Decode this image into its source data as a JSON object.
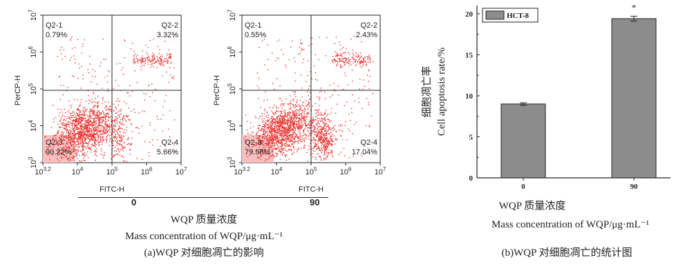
{
  "panel_a": {
    "plots": [
      {
        "group_label": "0",
        "quadrants": {
          "q1": {
            "name": "Q2-1",
            "pct": "0.79%"
          },
          "q2": {
            "name": "Q2-2",
            "pct": "3.32%"
          },
          "q3": {
            "name": "Q2-3",
            "pct": "90.22%"
          },
          "q4": {
            "name": "Q2-4",
            "pct": "5.66%"
          }
        }
      },
      {
        "group_label": "90",
        "quadrants": {
          "q1": {
            "name": "Q2-1",
            "pct": "0.55%"
          },
          "q2": {
            "name": "Q2-2",
            "pct": "2.43%"
          },
          "q3": {
            "name": "Q2-3",
            "pct": "79.98%"
          },
          "q4": {
            "name": "Q2-4",
            "pct": "17.04%"
          }
        }
      }
    ],
    "y_axis_label": "PerCP-H",
    "x_axis_label": "FITC-H",
    "x_ticks": [
      "10^3.2",
      "10^4",
      "10^5",
      "10^6",
      "10^7"
    ],
    "y_ticks": [
      "10^3",
      "10^4",
      "10^5",
      "10^6",
      "10^7"
    ],
    "caption_zh": "WQP 质量浓度",
    "caption_en": "Mass concentration of WQP/μg·mL⁻¹",
    "subcaption": "(a)WQP 对细胞凋亡的影响"
  },
  "panel_b": {
    "caption_zh": "WQP 质量浓度",
    "caption_en": "Mass concentration of WQP/μg·mL⁻¹",
    "subcaption": "(b)WQP 对细胞凋亡的统计图"
  },
  "chart_data": {
    "type": "bar",
    "categories": [
      "0",
      "90"
    ],
    "series": [
      {
        "name": "HCT-8",
        "values": [
          9.0,
          19.4
        ],
        "errors": [
          0.15,
          0.3
        ],
        "color": "#8c8c8c"
      }
    ],
    "ylabel_zh": "细胞凋亡率",
    "ylabel_en": "Cell apoptosis rate/%",
    "ylim": [
      0,
      21
    ],
    "yticks": [
      "0",
      "5",
      "10",
      "15",
      "20"
    ],
    "annotations": [
      "*"
    ],
    "legend_position": "top-left",
    "grid": false
  },
  "colors": {
    "dots": "#e8322f",
    "gate_highlight": "#f6c0c0",
    "bar_fill": "#8c8c8c"
  }
}
